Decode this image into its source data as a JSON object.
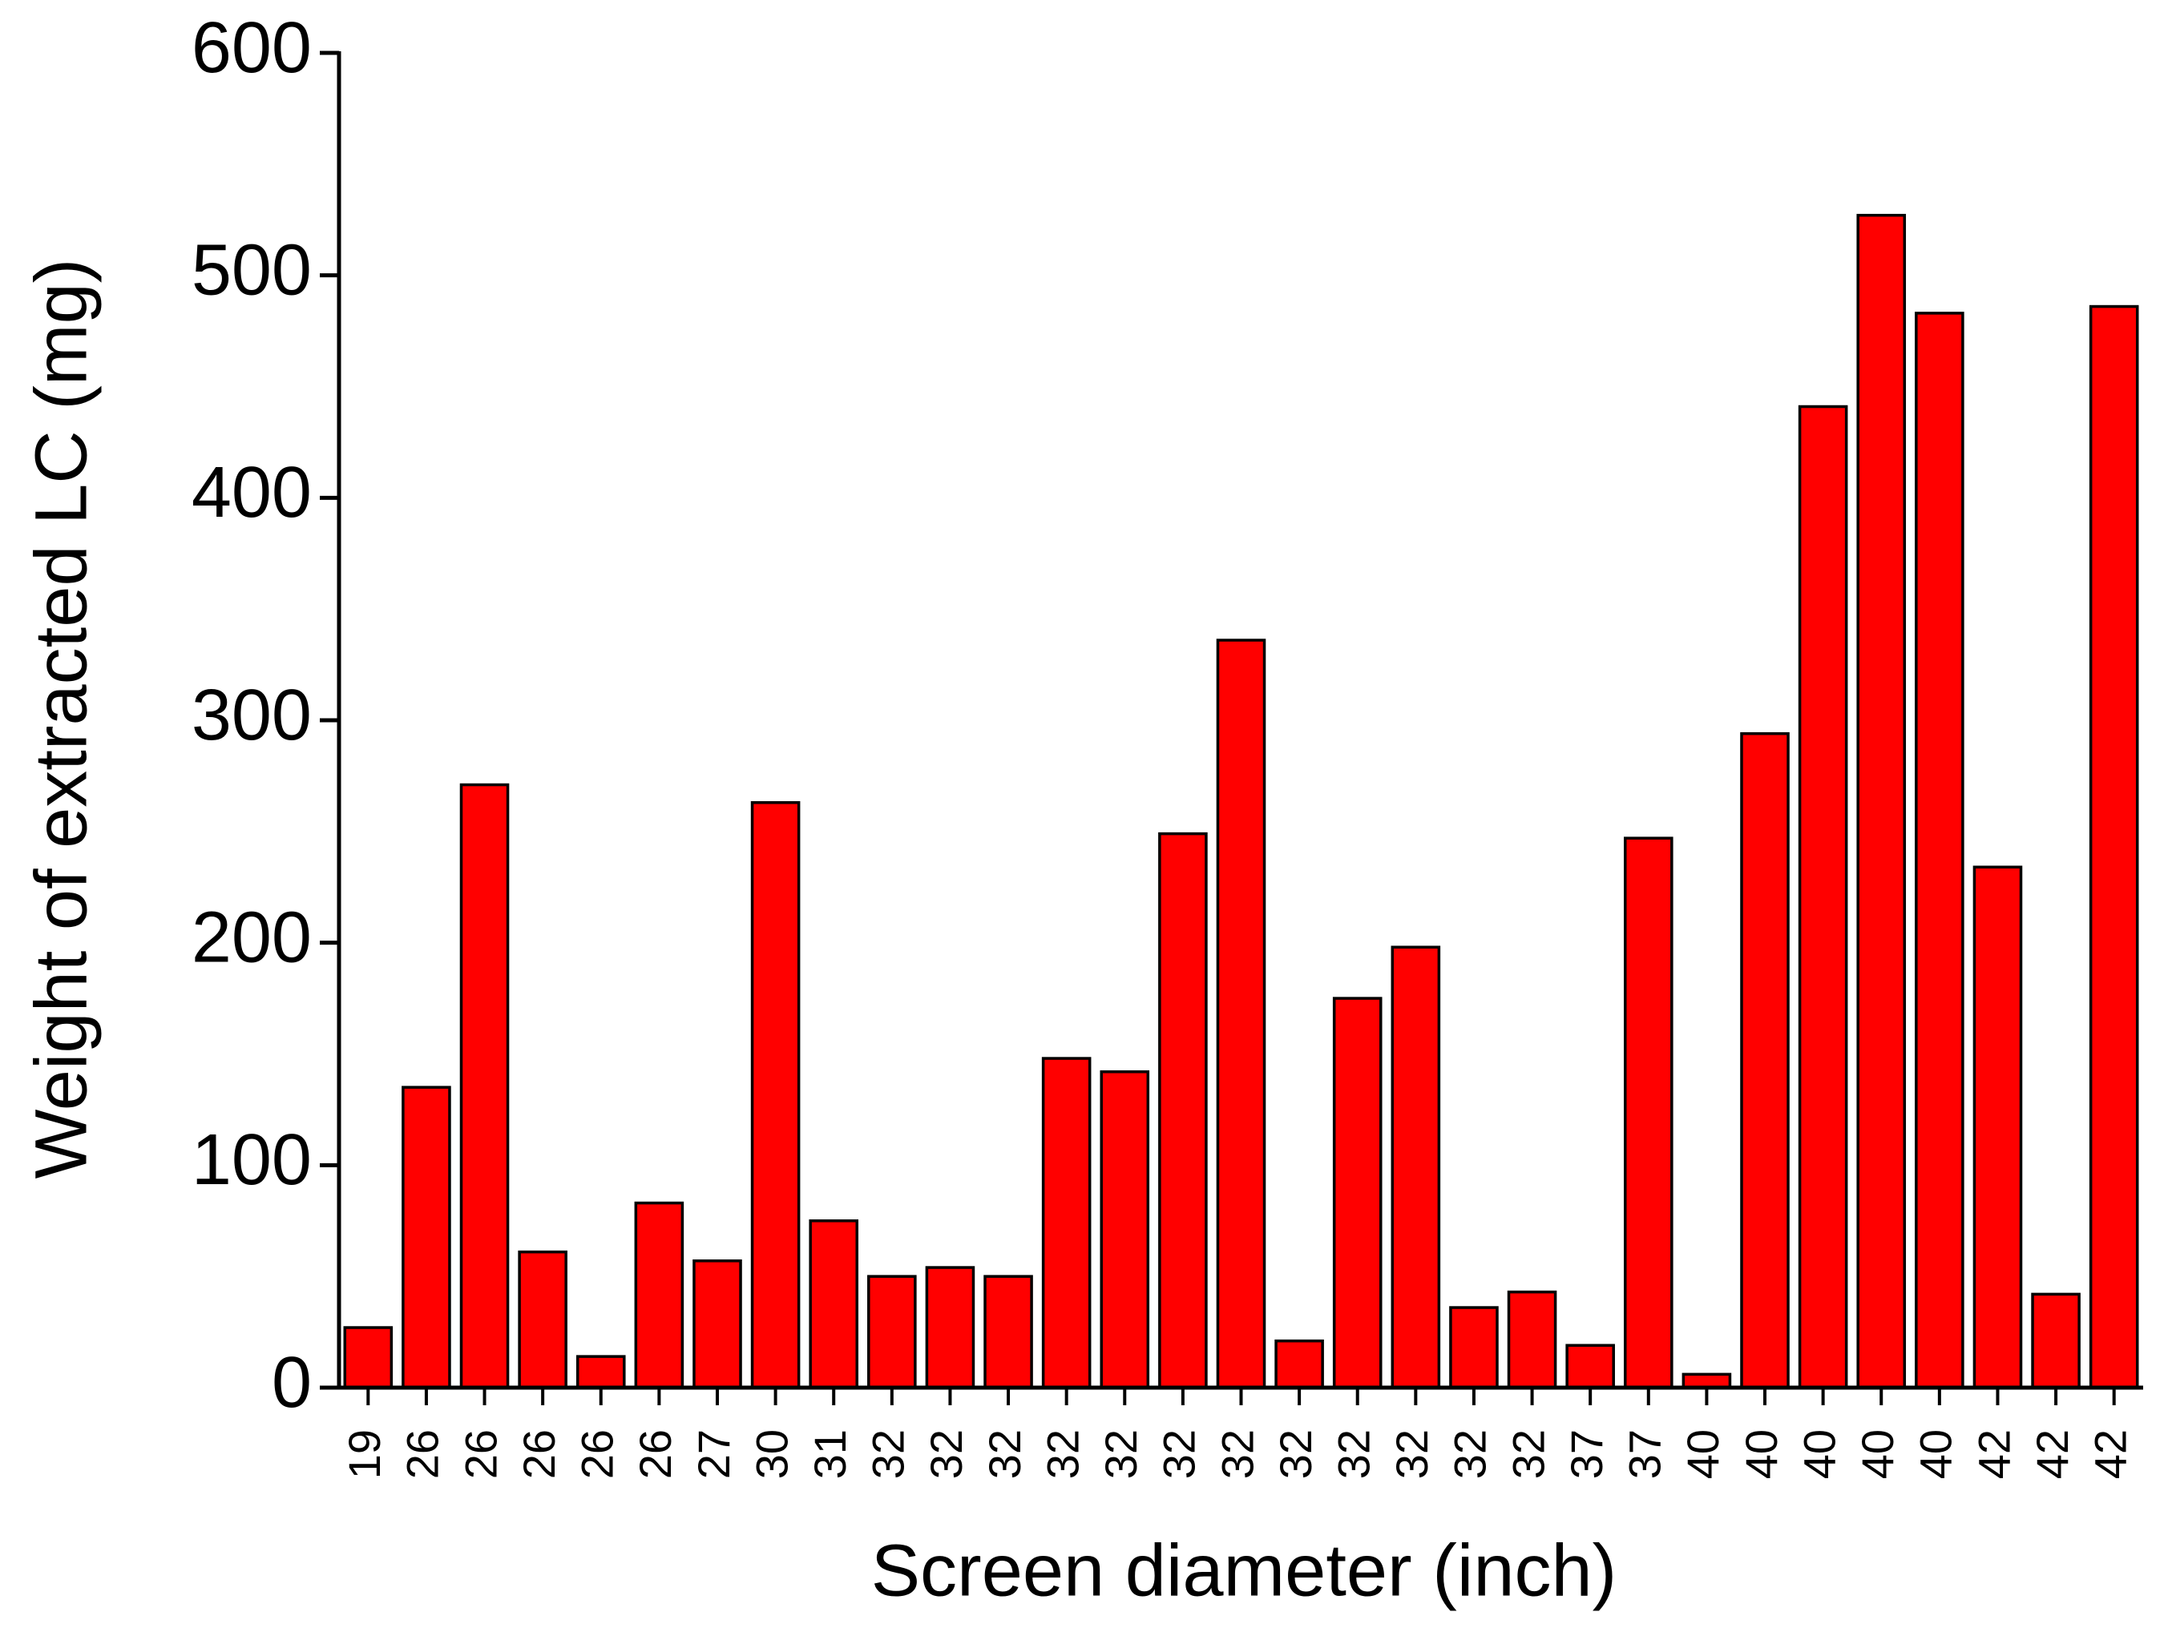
{
  "chart_data": {
    "type": "bar",
    "x_label": "Screen diameter (inch)",
    "y_label": "Weight of extracted LC (mg)",
    "categories": [
      "19",
      "26",
      "26",
      "26",
      "26",
      "26",
      "27",
      "30",
      "31",
      "32",
      "32",
      "32",
      "32",
      "32",
      "32",
      "32",
      "32",
      "32",
      "32",
      "32",
      "32",
      "37",
      "37",
      "40",
      "40",
      "40",
      "40",
      "40",
      "42",
      "42",
      "42"
    ],
    "values": [
      27,
      135,
      271,
      61,
      14,
      83,
      57,
      263,
      75,
      50,
      54,
      50,
      148,
      142,
      249,
      336,
      21,
      175,
      198,
      36,
      43,
      19,
      247,
      6,
      294,
      441,
      527,
      483,
      234,
      42,
      486
    ],
    "color": "#ff0000",
    "ylim": [
      0,
      600
    ],
    "yticks": [
      0,
      100,
      200,
      300,
      400,
      500,
      600
    ],
    "grid": false
  }
}
